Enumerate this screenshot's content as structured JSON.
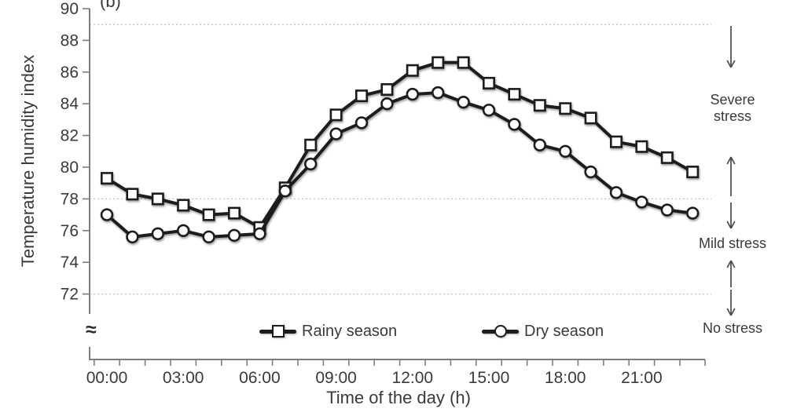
{
  "panel_label": "(b)",
  "chart_data": {
    "type": "line",
    "title": "",
    "xlabel": "Time of the day (h)",
    "ylabel": "Temperature humidity index",
    "x_categories": [
      "00:00",
      "01:00",
      "02:00",
      "03:00",
      "04:00",
      "05:00",
      "06:00",
      "07:00",
      "08:00",
      "09:00",
      "10:00",
      "11:00",
      "12:00",
      "13:00",
      "14:00",
      "15:00",
      "16:00",
      "17:00",
      "18:00",
      "19:00",
      "20:00",
      "21:00",
      "22:00",
      "23:00"
    ],
    "x_tick_labels": [
      "00:00",
      "03:00",
      "06:00",
      "09:00",
      "12:00",
      "15:00",
      "18:00",
      "21:00"
    ],
    "x_tick_step_hours": 3,
    "y_ticks": [
      90,
      88,
      86,
      84,
      82,
      80,
      78,
      76,
      74,
      72
    ],
    "ylim": [
      72,
      90
    ],
    "axis_break_symbol": "≈",
    "threshold_gridlines": [
      89,
      78,
      72
    ],
    "grid_style": "dotted-horizontal",
    "legend_position": "bottom-inside",
    "series": [
      {
        "name": "Rainy season",
        "marker": "square",
        "values": [
          79.3,
          78.3,
          78.0,
          77.6,
          77.0,
          77.1,
          76.2,
          78.7,
          81.4,
          83.3,
          84.5,
          84.9,
          86.1,
          86.6,
          86.6,
          85.3,
          84.6,
          83.9,
          83.7,
          83.1,
          81.6,
          81.3,
          80.6,
          79.7
        ]
      },
      {
        "name": "Dry season",
        "marker": "circle",
        "values": [
          77.0,
          75.6,
          75.8,
          76.0,
          75.6,
          75.7,
          75.8,
          78.5,
          80.2,
          82.1,
          82.8,
          84.0,
          84.6,
          84.7,
          84.1,
          83.6,
          82.7,
          81.4,
          81.0,
          79.7,
          78.4,
          77.8,
          77.3,
          77.1
        ]
      }
    ]
  },
  "annotations": [
    {
      "text": "Severe stress"
    },
    {
      "text": "Mild stress"
    },
    {
      "text": "No stress"
    }
  ],
  "colors": {
    "series": "#1c1c1c",
    "axis": "#7d7d7d",
    "gridline": "#c4c4c4",
    "text": "#3a3a3a",
    "arrow": "#4a4a4a",
    "background": "#ffffff"
  }
}
